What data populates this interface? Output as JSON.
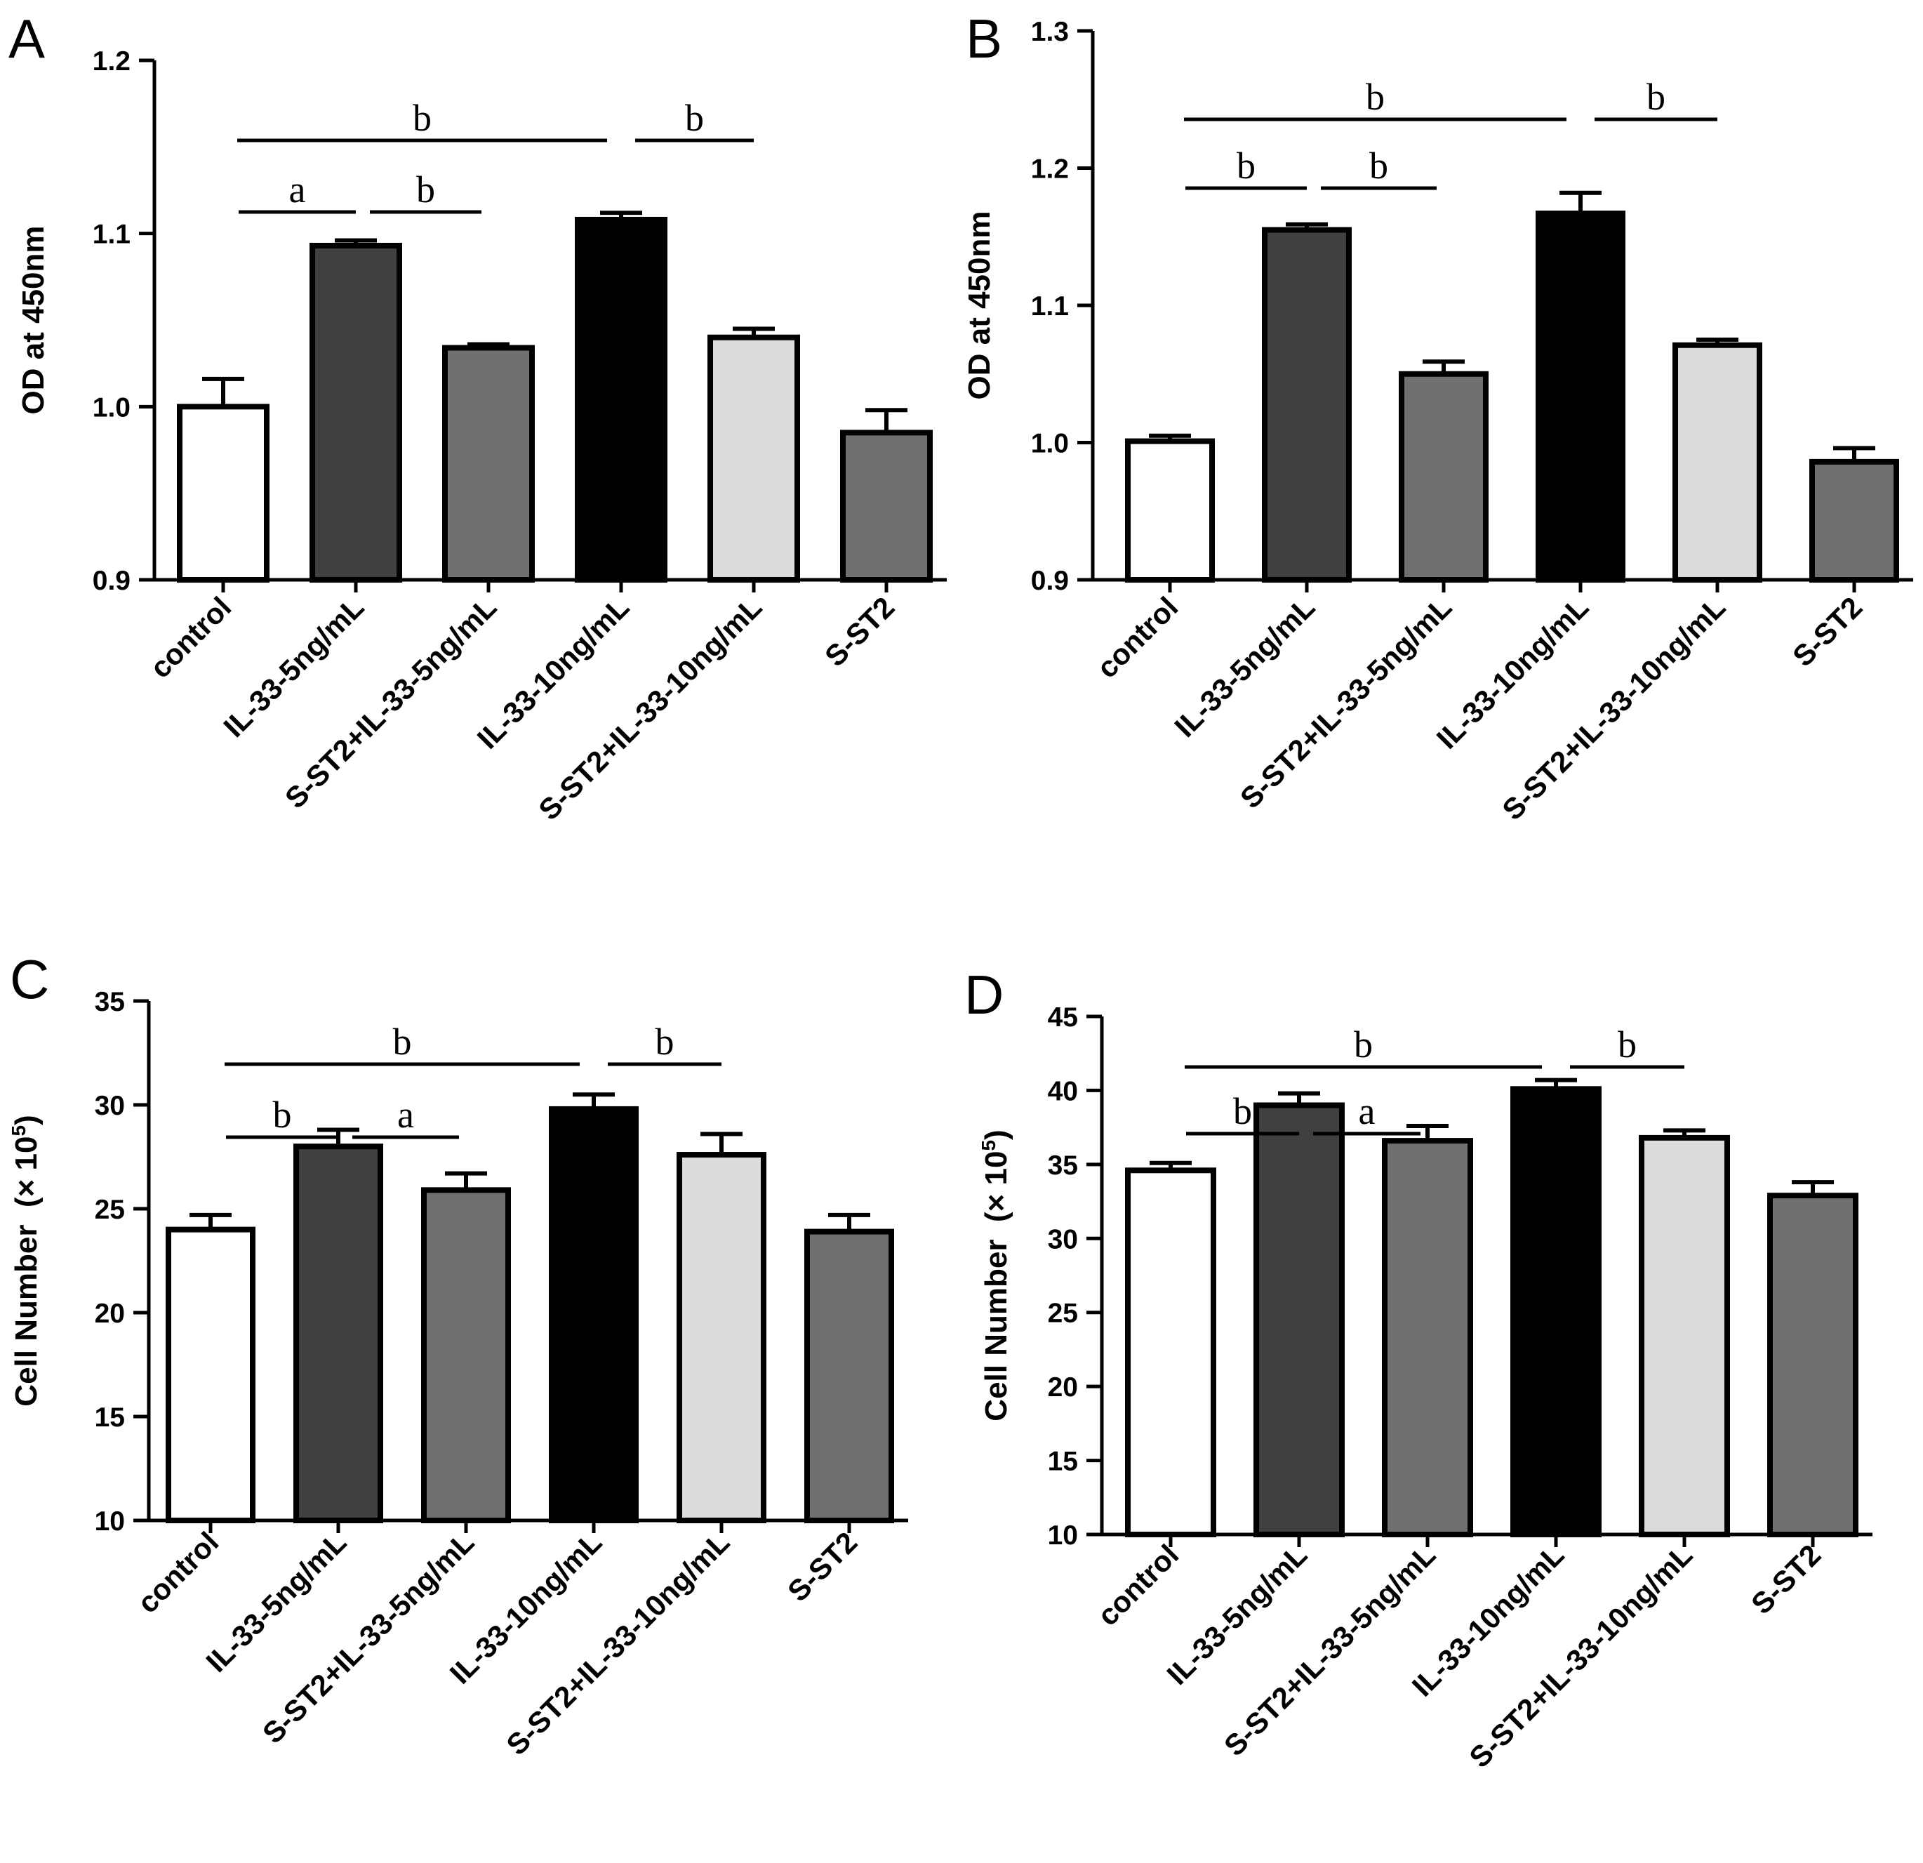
{
  "chart_data": [
    {
      "type": "bar",
      "panel": "A",
      "ylabel": "OD at 450nm",
      "ylim": [
        0.9,
        1.2
      ],
      "yticks": [
        "0.9",
        "1.0",
        "1.1",
        "1.2"
      ],
      "categories": [
        "control",
        "IL-33-5ng/mL",
        "S-ST2+IL-33-5ng/mL",
        "IL-33-10ng/mL",
        "S-ST2+IL-33-10ng/mL",
        "S-ST2"
      ],
      "values": [
        1.0,
        1.093,
        1.034,
        1.108,
        1.04,
        0.985
      ],
      "errors": [
        0.016,
        0.003,
        0.002,
        0.004,
        0.005,
        0.013
      ],
      "bar_colors": [
        "#ffffff",
        "#404040",
        "#707070",
        "#000000",
        "#dcdcdc",
        "#707070"
      ],
      "significance": [
        {
          "from": 0,
          "to": 3,
          "label": "b",
          "level": 2
        },
        {
          "from": 3,
          "to": 4,
          "label": "b",
          "level": 2
        },
        {
          "from": 0,
          "to": 1,
          "label": "a",
          "level": 1
        },
        {
          "from": 1,
          "to": 2,
          "label": "b",
          "level": 1
        }
      ]
    },
    {
      "type": "bar",
      "panel": "B",
      "ylabel": "OD at 450nm",
      "ylim": [
        0.9,
        1.3
      ],
      "yticks": [
        "0.9",
        "1.0",
        "1.1",
        "1.2",
        "1.3"
      ],
      "categories": [
        "control",
        "IL-33-5ng/mL",
        "S-ST2+IL-33-5ng/mL",
        "IL-33-10ng/mL",
        "S-ST2+IL-33-10ng/mL",
        "S-ST2"
      ],
      "values": [
        1.001,
        1.155,
        1.05,
        1.167,
        1.071,
        0.986
      ],
      "errors": [
        0.004,
        0.004,
        0.009,
        0.015,
        0.004,
        0.01
      ],
      "bar_colors": [
        "#ffffff",
        "#404040",
        "#707070",
        "#000000",
        "#dcdcdc",
        "#707070"
      ],
      "significance": [
        {
          "from": 0,
          "to": 3,
          "label": "b",
          "level": 2
        },
        {
          "from": 3,
          "to": 4,
          "label": "b",
          "level": 2
        },
        {
          "from": 0,
          "to": 1,
          "label": "b",
          "level": 1
        },
        {
          "from": 1,
          "to": 2,
          "label": "b",
          "level": 1
        }
      ]
    },
    {
      "type": "bar",
      "panel": "C",
      "ylabel_main": "Cell Number",
      "ylabel_unit": "(× 10",
      "ylabel_exp": "5",
      "ylabel_close": ")",
      "ylim": [
        10,
        35
      ],
      "yticks": [
        "10",
        "15",
        "20",
        "25",
        "30",
        "35"
      ],
      "categories": [
        "control",
        "IL-33-5ng/mL",
        "S-ST2+IL-33-5ng/mL",
        "IL-33-10ng/mL",
        "S-ST2+IL-33-10ng/mL",
        "S-ST2"
      ],
      "values": [
        24.0,
        28.0,
        25.9,
        29.8,
        27.6,
        23.9
      ],
      "errors": [
        0.7,
        0.8,
        0.8,
        0.7,
        1.0,
        0.8
      ],
      "bar_colors": [
        "#ffffff",
        "#404040",
        "#707070",
        "#000000",
        "#dcdcdc",
        "#707070"
      ],
      "significance": [
        {
          "from": 0,
          "to": 3,
          "label": "b",
          "level": 2
        },
        {
          "from": 3,
          "to": 4,
          "label": "b",
          "level": 2
        },
        {
          "from": 0,
          "to": 1,
          "label": "b",
          "level": 1
        },
        {
          "from": 1,
          "to": 2,
          "label": "a",
          "level": 1
        }
      ]
    },
    {
      "type": "bar",
      "panel": "D",
      "ylabel_main": "Cell Number",
      "ylabel_unit": "(× 10",
      "ylabel_exp": "5",
      "ylabel_close": ")",
      "ylim": [
        10,
        45
      ],
      "yticks": [
        "10",
        "15",
        "20",
        "25",
        "30",
        "35",
        "40",
        "45"
      ],
      "categories": [
        "control",
        "IL-33-5ng/mL",
        "S-ST2+IL-33-5ng/mL",
        "IL-33-10ng/mL",
        "S-ST2+IL-33-10ng/mL",
        "S-ST2"
      ],
      "values": [
        34.6,
        39.0,
        36.6,
        40.1,
        36.8,
        32.9
      ],
      "errors": [
        0.5,
        0.8,
        1.0,
        0.6,
        0.5,
        0.9
      ],
      "bar_colors": [
        "#ffffff",
        "#404040",
        "#707070",
        "#000000",
        "#dcdcdc",
        "#707070"
      ],
      "significance": [
        {
          "from": 0,
          "to": 3,
          "label": "b",
          "level": 2
        },
        {
          "from": 3,
          "to": 4,
          "label": "b",
          "level": 2
        },
        {
          "from": 0,
          "to": 1,
          "label": "b",
          "level": 1
        },
        {
          "from": 1,
          "to": 2,
          "label": "a",
          "level": 1
        }
      ]
    }
  ]
}
